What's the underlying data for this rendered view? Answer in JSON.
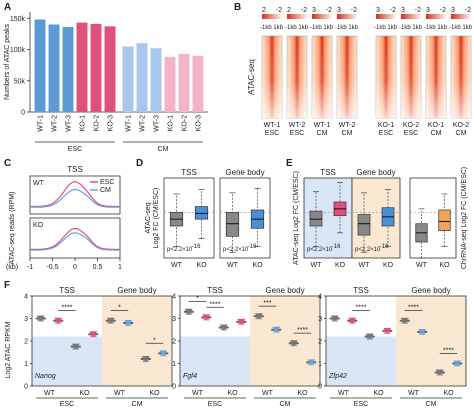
{
  "chart_data": [
    {
      "panel": "A",
      "type": "bar",
      "ylabel": "Numbers of ATAC peaks",
      "yticks": [
        "0",
        "50k",
        "100k",
        "150k"
      ],
      "ylim": [
        0,
        160000
      ],
      "categories": [
        "WT-1",
        "WT-2",
        "WT-3",
        "KO-1",
        "KO-2",
        "KO-3",
        "WT-1",
        "WT-2",
        "WT-3",
        "KO-1",
        "KO-2",
        "KO-3"
      ],
      "values": [
        148000,
        140000,
        136000,
        143000,
        141000,
        137000,
        105000,
        110000,
        102000,
        88000,
        93000,
        90000
      ],
      "bar_colors": [
        "#5b9bd5",
        "#5b9bd5",
        "#5b9bd5",
        "#e0507a",
        "#e0507a",
        "#e0507a",
        "#a9c6ee",
        "#a9c6ee",
        "#a9c6ee",
        "#f3b3c8",
        "#f3b3c8",
        "#f3b3c8"
      ],
      "groups": [
        {
          "label": "ESC"
        },
        {
          "label": "CM"
        }
      ]
    },
    {
      "panel": "B",
      "type": "heatmap",
      "ylabel": "ATAC-seq",
      "scale_labels": [
        "2",
        "-2",
        "2",
        "-2",
        "3",
        "-2",
        "3",
        "-2",
        "3",
        "-2",
        "3",
        "-2",
        "3",
        "-2",
        "3",
        "-2"
      ],
      "tick_left": "-1kb",
      "tick_right": "1kb",
      "columns": [
        {
          "l1": "WT-1",
          "l2": "ESC"
        },
        {
          "l1": "WT-2",
          "l2": "ESC"
        },
        {
          "l1": "WT-1",
          "l2": "CM"
        },
        {
          "l1": "WT-2",
          "l2": "CM"
        },
        {
          "l1": "KO-1",
          "l2": "ESC"
        },
        {
          "l1": "KO-2",
          "l2": "ESC"
        },
        {
          "l1": "KO-1",
          "l2": "CM"
        },
        {
          "l1": "KO-2",
          "l2": "CM"
        }
      ],
      "colors": {
        "high": "#d7301f",
        "low": "#fff5eb"
      }
    },
    {
      "panel": "C",
      "type": "line",
      "title": "TSS",
      "ylabel": "ATAC-seq reads (RPM)",
      "xlabel": "(kb)",
      "xticks": [
        "-1",
        "-0.5",
        "0",
        "0.5",
        "1"
      ],
      "subpanels": [
        {
          "label": "WT",
          "series": [
            {
              "name": "ESC",
              "color": "#e0507a",
              "peak": 0.95,
              "base": 0.22
            },
            {
              "name": "CM",
              "color": "#6aa3d8",
              "peak": 0.72,
              "base": 0.2
            }
          ]
        },
        {
          "label": "KO",
          "series": [
            {
              "name": "ESC",
              "color": "#e0507a",
              "peak": 0.82,
              "base": 0.24
            },
            {
              "name": "CM",
              "color": "#6aa3d8",
              "peak": 0.7,
              "base": 0.22
            }
          ]
        }
      ]
    },
    {
      "panel": "D",
      "type": "box",
      "ylabel": "ATAC-seq",
      "ylabel2": "Log2 FC (CM/ESC)",
      "categories": [
        "WT",
        "KO"
      ],
      "ylim": [
        -4,
        3
      ],
      "subpanels": [
        {
          "title": "TSS",
          "pvalue": "p<2.2×10",
          "pexp": "-16",
          "boxes": [
            {
              "q1": -1.2,
              "med": -0.6,
              "q3": 0.0,
              "wl": -3.0,
              "wh": 1.6,
              "color": "#888888"
            },
            {
              "q1": -0.6,
              "med": -0.1,
              "q3": 0.5,
              "wl": -2.3,
              "wh": 2.0,
              "color": "#4a90d9"
            }
          ]
        },
        {
          "title": "Gene body",
          "pvalue": "p<2.2×10",
          "pexp": "-16",
          "boxes": [
            {
              "q1": -2.1,
              "med": -1.0,
              "q3": 0.0,
              "wl": -3.5,
              "wh": 1.7,
              "color": "#888888"
            },
            {
              "q1": -1.4,
              "med": -0.6,
              "q3": 0.2,
              "wl": -3.0,
              "wh": 2.1,
              "color": "#4a90d9"
            }
          ]
        }
      ]
    },
    {
      "panel": "E",
      "type": "box",
      "ylabel": "ATAC-seq Log2 FC (CM/ESC)",
      "ylabel_right": "ChrRNA-seq Log2 FC (CM/ESC)",
      "categories": [
        "WT",
        "KO"
      ],
      "ylim": [
        -4,
        3
      ],
      "subpanels": [
        {
          "title": "TSS",
          "bg": "#d8e6f6",
          "pvalue": "p<2.2×10",
          "pexp": "-16",
          "boxes": [
            {
              "q1": -1.2,
              "med": -0.6,
              "q3": 0.1,
              "wl": -3.0,
              "wh": 1.8,
              "color": "#888888"
            },
            {
              "q1": -0.3,
              "med": 0.3,
              "q3": 0.9,
              "wl": -1.8,
              "wh": 2.6,
              "color": "#e0507a"
            }
          ]
        },
        {
          "title": "Gene body",
          "bg": "#fbe8d3",
          "pvalue": "p<2.2×10",
          "pexp": "-16",
          "boxes": [
            {
              "q1": -2.0,
              "med": -1.0,
              "q3": -0.2,
              "wl": -3.5,
              "wh": 1.7,
              "color": "#888888"
            },
            {
              "q1": -1.2,
              "med": -0.4,
              "q3": 0.4,
              "wl": -3.0,
              "wh": 2.0,
              "color": "#4a90d9"
            }
          ]
        },
        {
          "title": "",
          "bg": "#ffffff",
          "pvalue": "",
          "pexp": "",
          "boxes": [
            {
              "q1": -2.6,
              "med": -1.8,
              "q3": -1.0,
              "wl": -4.0,
              "wh": 0.3,
              "color": "#888888"
            },
            {
              "q1": -1.6,
              "med": -0.8,
              "q3": 0.2,
              "wl": -3.0,
              "wh": 1.6,
              "color": "#f0a65a"
            }
          ]
        }
      ]
    },
    {
      "panel": "F",
      "type": "scatter",
      "ylabel": "Log2 ATAC RPKM",
      "yticks": [
        "0",
        "1",
        "2",
        "3",
        "4"
      ],
      "ylim": [
        0,
        4
      ],
      "region_labels": [
        "TSS",
        "Gene body"
      ],
      "condition_labels": [
        "WT",
        "KO",
        "WT",
        "KO"
      ],
      "stage_labels": [
        "ESC",
        "CM"
      ],
      "subpanels": [
        {
          "gene": "Nanog",
          "means": [
            3.0,
            2.9,
            1.75,
            2.3,
            2.9,
            2.8,
            1.2,
            1.45
          ],
          "sig": [
            "",
            "****",
            "",
            "*",
            "*"
          ]
        },
        {
          "gene": "Fgf4",
          "means": [
            3.3,
            3.05,
            2.6,
            2.85,
            3.1,
            2.5,
            1.9,
            1.05
          ],
          "sig": [
            "*",
            "****",
            "",
            "***",
            "****"
          ]
        },
        {
          "gene": "Zfp42",
          "means": [
            3.0,
            2.9,
            2.2,
            2.45,
            2.9,
            2.4,
            0.6,
            1.0
          ],
          "sig": [
            "",
            "****",
            "",
            "****",
            "****"
          ]
        }
      ]
    }
  ]
}
